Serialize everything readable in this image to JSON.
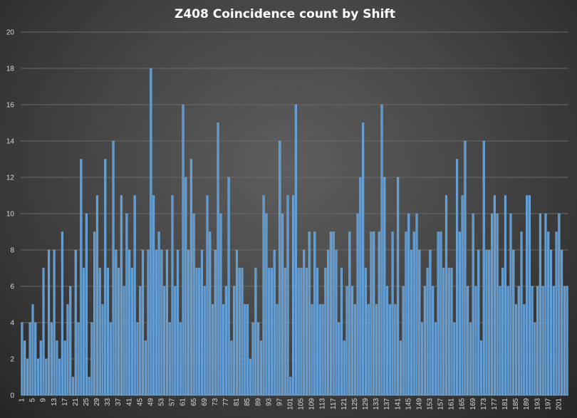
{
  "chart_data": {
    "type": "bar",
    "title": "Z408 Coincidence count by Shift",
    "xlabel": "",
    "ylabel": "",
    "ylim": [
      0,
      20
    ],
    "ytick_step": 2,
    "x_start": 1,
    "x_end": 204,
    "xtick_labels": [
      "1",
      "5",
      "9",
      "13",
      "17",
      "21",
      "25",
      "29",
      "33",
      "37",
      "41",
      "45",
      "49",
      "53",
      "57",
      "61",
      "65",
      "69",
      "73",
      "77",
      "81",
      "85",
      "89",
      "93",
      "97",
      "101",
      "105",
      "109",
      "113",
      "117",
      "121",
      "125",
      "129",
      "133",
      "137",
      "141",
      "145",
      "149",
      "153",
      "157",
      "161",
      "165",
      "169",
      "173",
      "177",
      "181",
      "185",
      "189",
      "193",
      "197",
      "201"
    ],
    "grid": true,
    "legend": "none",
    "bar_color": "#5b9bd5",
    "values": [
      4,
      3,
      2,
      4,
      5,
      4,
      2,
      3,
      7,
      2,
      8,
      4,
      8,
      3,
      2,
      9,
      3,
      5,
      6,
      1,
      8,
      4,
      13,
      7,
      10,
      1,
      4,
      9,
      11,
      7,
      5,
      13,
      7,
      4,
      14,
      8,
      7,
      11,
      6,
      10,
      8,
      7,
      11,
      4,
      6,
      8,
      3,
      8,
      18,
      11,
      8,
      9,
      8,
      6,
      8,
      4,
      11,
      6,
      8,
      4,
      16,
      12,
      8,
      13,
      10,
      7,
      7,
      8,
      6,
      11,
      9,
      5,
      8,
      15,
      10,
      5,
      6,
      12,
      3,
      6,
      8,
      7,
      7,
      5,
      5,
      2,
      4,
      7,
      4,
      3,
      11,
      10,
      7,
      7,
      8,
      5,
      14,
      10,
      7,
      11,
      1,
      11,
      16,
      7,
      7,
      8,
      7,
      9,
      5,
      9,
      7,
      5,
      5,
      7,
      8,
      9,
      9,
      8,
      4,
      7,
      3,
      6,
      9,
      6,
      5,
      10,
      12,
      15,
      7,
      5,
      9,
      9,
      5,
      9,
      16,
      12,
      6,
      5,
      9,
      5,
      12,
      3,
      6,
      9,
      10,
      8,
      9,
      10,
      8,
      4,
      6,
      7,
      8,
      6,
      4,
      9,
      9,
      7,
      11,
      7,
      7,
      4,
      13,
      9,
      11,
      14,
      6,
      4,
      10,
      6,
      8,
      3,
      14,
      8,
      8,
      10,
      11,
      10,
      6,
      7,
      11,
      6,
      10,
      8,
      5,
      6,
      9,
      5,
      11,
      11,
      6,
      4,
      6,
      10,
      6,
      10,
      9,
      8,
      6,
      9,
      10,
      8,
      6,
      6
    ]
  }
}
